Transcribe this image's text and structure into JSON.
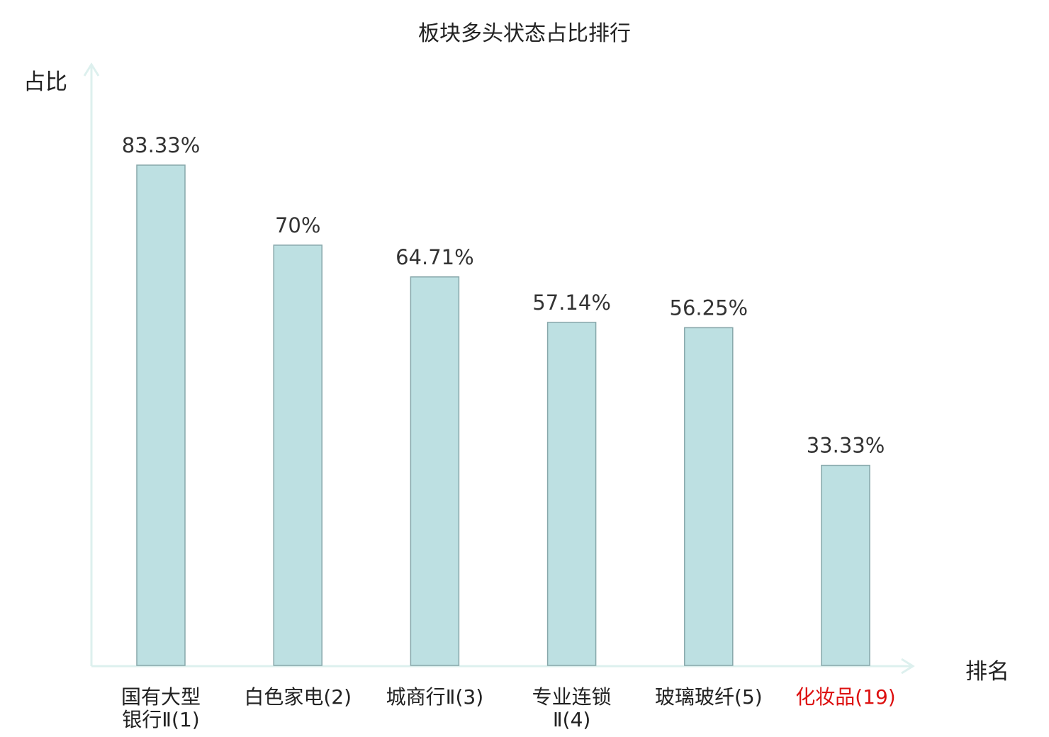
{
  "chart_data": {
    "type": "bar",
    "title": "板块多头状态占比排行",
    "xlabel": "排名",
    "ylabel": "占比",
    "ylim": [
      0,
      100
    ],
    "categories": [
      [
        "国有大型",
        "银行Ⅱ(1)"
      ],
      [
        "白色家电(2)"
      ],
      [
        "城商行Ⅱ(3)"
      ],
      [
        "专业连锁",
        "Ⅱ(4)"
      ],
      [
        "玻璃玻纤(5)"
      ],
      [
        "化妆品(19)"
      ]
    ],
    "values": [
      83.33,
      70,
      64.71,
      57.14,
      56.25,
      33.33
    ],
    "value_labels": [
      "83.33%",
      "70%",
      "64.71%",
      "57.14%",
      "56.25%",
      "33.33%"
    ],
    "highlight_index": 5,
    "colors": {
      "bar_fill": "#bde0e2",
      "bar_stroke": "#87a7aa",
      "axis": "#ddf0ee",
      "text": "#222222",
      "value_text": "#333333",
      "highlight_text": "#dd1111"
    },
    "grid": false,
    "legend": "none"
  }
}
